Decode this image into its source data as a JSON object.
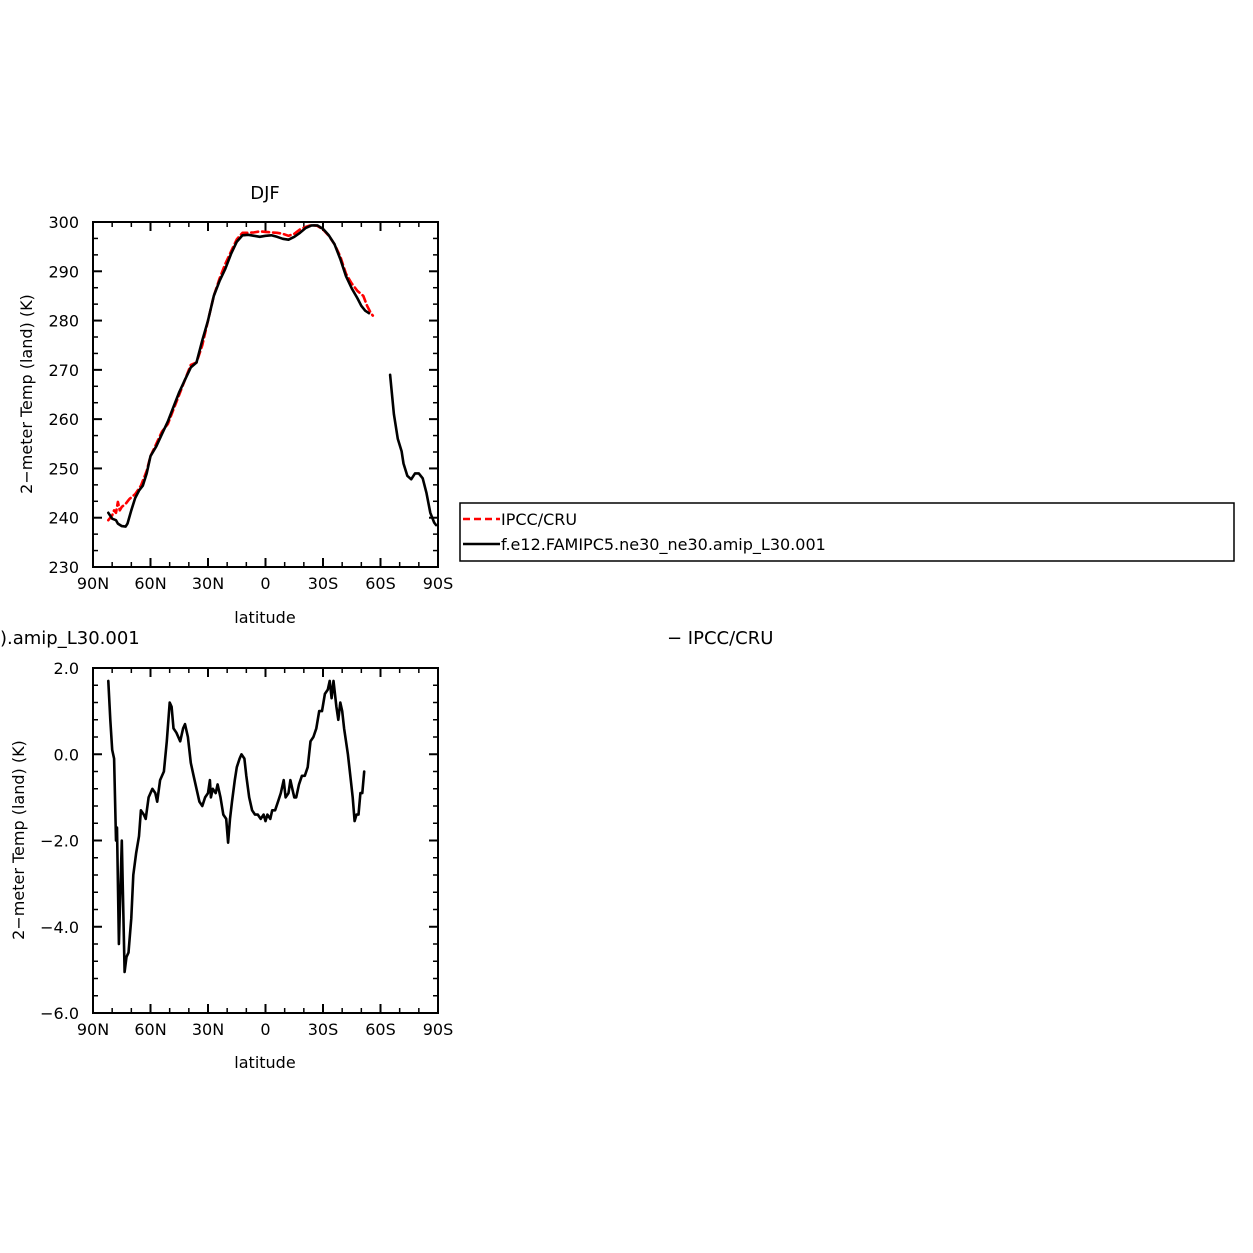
{
  "chart_data": [
    {
      "type": "line",
      "title": "DJF",
      "xlabel": "latitude",
      "ylabel": "2−meter Temp (land) (K)",
      "xlim": [
        90,
        -90
      ],
      "ylim": [
        230,
        300
      ],
      "x_ticks": [
        90,
        60,
        30,
        0,
        -30,
        -60,
        -90
      ],
      "x_tick_labels": [
        "90N",
        "60N",
        "30N",
        "0",
        "30S",
        "60S",
        "90S"
      ],
      "y_ticks": [
        230,
        240,
        250,
        260,
        270,
        280,
        290,
        300
      ],
      "y_tick_labels": [
        "230",
        "240",
        "250",
        "260",
        "270",
        "280",
        "290",
        "300"
      ],
      "legend_position": "right",
      "series": [
        {
          "name": "IPCC/CRU",
          "color": "#ff0000",
          "style": "dashed",
          "segments": [
            [
              [
                82,
                239.5
              ],
              [
                80,
                240.5
              ],
              [
                79,
                241.5
              ],
              [
                78,
                241
              ],
              [
                77,
                243.2
              ],
              [
                76,
                241.5
              ],
              [
                75,
                242.2
              ],
              [
                73,
                242.8
              ],
              [
                71,
                243.8
              ],
              [
                68,
                244.8
              ],
              [
                65,
                246.5
              ],
              [
                62,
                249.5
              ],
              [
                60,
                252.5
              ],
              [
                57,
                255
              ],
              [
                54,
                257.5
              ],
              [
                51,
                259
              ],
              [
                48,
                262
              ],
              [
                45,
                265
              ],
              [
                42,
                268
              ],
              [
                39,
                271
              ],
              [
                36,
                271.5
              ],
              [
                33,
                275
              ],
              [
                30,
                280
              ],
              [
                27,
                285
              ],
              [
                24,
                288.5
              ],
              [
                21,
                291.5
              ],
              [
                18,
                294
              ],
              [
                15,
                296.5
              ],
              [
                12,
                297.8
              ],
              [
                9,
                297.8
              ],
              [
                6,
                297.9
              ],
              [
                3,
                298.1
              ],
              [
                0,
                298
              ],
              [
                -3,
                297.9
              ],
              [
                -6,
                297.8
              ],
              [
                -9,
                297.6
              ],
              [
                -12,
                297.2
              ],
              [
                -15,
                297.6
              ],
              [
                -18,
                298.5
              ],
              [
                -21,
                299
              ],
              [
                -24,
                299.4
              ],
              [
                -27,
                299.2
              ],
              [
                -30,
                298.5
              ],
              [
                -33,
                297.2
              ],
              [
                -36,
                295.5
              ],
              [
                -39,
                293
              ],
              [
                -42,
                289.5
              ],
              [
                -45,
                287.5
              ],
              [
                -48,
                286
              ],
              [
                -51,
                285
              ],
              [
                -53,
                283
              ],
              [
                -55,
                281.5
              ],
              [
                -56,
                281
              ]
            ]
          ]
        },
        {
          "name": "f.e12.FAMIPC5.ne30_ne30.amip_L30.001",
          "color": "#000000",
          "style": "solid",
          "segments": [
            [
              [
                82,
                241
              ],
              [
                80,
                239.8
              ],
              [
                78,
                239.5
              ],
              [
                77,
                238.8
              ],
              [
                75,
                238.3
              ],
              [
                73,
                238.2
              ],
              [
                72,
                238.8
              ],
              [
                70,
                241.5
              ],
              [
                68,
                244
              ],
              [
                66,
                245.5
              ],
              [
                64,
                246.5
              ],
              [
                62,
                249
              ],
              [
                60,
                252.5
              ],
              [
                57,
                254.5
              ],
              [
                54,
                257
              ],
              [
                51,
                259.5
              ],
              [
                48,
                262.5
              ],
              [
                45,
                265.5
              ],
              [
                42,
                268
              ],
              [
                39,
                270.5
              ],
              [
                36,
                271.5
              ],
              [
                33,
                276
              ],
              [
                30,
                280
              ],
              [
                27,
                285
              ],
              [
                24,
                288
              ],
              [
                21,
                290.5
              ],
              [
                18,
                293.5
              ],
              [
                15,
                296
              ],
              [
                12,
                297.3
              ],
              [
                9,
                297.4
              ],
              [
                6,
                297.2
              ],
              [
                3,
                297
              ],
              [
                0,
                297.2
              ],
              [
                -3,
                297.3
              ],
              [
                -6,
                297
              ],
              [
                -9,
                296.6
              ],
              [
                -12,
                296.4
              ],
              [
                -15,
                297
              ],
              [
                -18,
                297.8
              ],
              [
                -21,
                298.8
              ],
              [
                -24,
                299.3
              ],
              [
                -27,
                299.3
              ],
              [
                -30,
                298.6
              ],
              [
                -33,
                297.3
              ],
              [
                -36,
                295.5
              ],
              [
                -39,
                292.5
              ],
              [
                -42,
                289
              ],
              [
                -45,
                286.5
              ],
              [
                -48,
                284.5
              ],
              [
                -50,
                283
              ],
              [
                -52,
                282
              ],
              [
                -54,
                281.5
              ]
            ],
            [
              [
                -65,
                269
              ],
              [
                -66,
                265
              ],
              [
                -67,
                261
              ],
              [
                -69,
                256
              ],
              [
                -71,
                253.5
              ],
              [
                -72,
                251
              ],
              [
                -74,
                248.5
              ],
              [
                -76,
                247.8
              ],
              [
                -78,
                249
              ],
              [
                -80,
                249
              ],
              [
                -82,
                248
              ],
              [
                -84,
                245
              ],
              [
                -86,
                241
              ],
              [
                -88,
                239
              ],
              [
                -89,
                238.5
              ]
            ]
          ]
        }
      ]
    },
    {
      "type": "line",
      "title": ").amip_L30.001",
      "title_right": "− IPCC/CRU",
      "xlabel": "latitude",
      "ylabel": "2−meter Temp (land) (K)",
      "xlim": [
        90,
        -90
      ],
      "ylim": [
        -6,
        2
      ],
      "x_ticks": [
        90,
        60,
        30,
        0,
        -30,
        -60,
        -90
      ],
      "x_tick_labels": [
        "90N",
        "60N",
        "30N",
        "0",
        "30S",
        "60S",
        "90S"
      ],
      "y_ticks": [
        -6,
        -4,
        -2,
        0,
        2
      ],
      "y_tick_labels": [
        "−6.0",
        "−4.0",
        "−2.0",
        "0.0",
        "2.0"
      ],
      "series": [
        {
          "color": "#000000",
          "style": "solid",
          "segments": [
            [
              [
                82,
                1.7
              ],
              [
                81,
                0.8
              ],
              [
                80,
                0.1
              ],
              [
                79,
                -0.1
              ],
              [
                78,
                -2
              ],
              [
                77.5,
                -1.7
              ],
              [
                76.5,
                -4.4
              ],
              [
                75,
                -2
              ],
              [
                73.5,
                -5.05
              ],
              [
                72.5,
                -4.7
              ],
              [
                71.5,
                -4.6
              ],
              [
                70,
                -3.8
              ],
              [
                69,
                -2.8
              ],
              [
                67.5,
                -2.3
              ],
              [
                66,
                -1.9
              ],
              [
                65,
                -1.3
              ],
              [
                63.5,
                -1.4
              ],
              [
                62.5,
                -1.5
              ],
              [
                61,
                -1.0
              ],
              [
                59,
                -0.8
              ],
              [
                57.5,
                -0.9
              ],
              [
                56.5,
                -1.1
              ],
              [
                55,
                -0.6
              ],
              [
                53,
                -0.4
              ],
              [
                51.5,
                0.3
              ],
              [
                50,
                1.2
              ],
              [
                49,
                1.1
              ],
              [
                48,
                0.6
              ],
              [
                46.5,
                0.5
              ],
              [
                45.5,
                0.4
              ],
              [
                44.5,
                0.3
              ],
              [
                43,
                0.6
              ],
              [
                42,
                0.7
              ],
              [
                40.5,
                0.4
              ],
              [
                39,
                -0.2
              ],
              [
                37.5,
                -0.5
              ],
              [
                36,
                -0.8
              ],
              [
                34.5,
                -1.1
              ],
              [
                33,
                -1.2
              ],
              [
                31.5,
                -1.0
              ],
              [
                30,
                -0.9
              ],
              [
                29,
                -0.6
              ],
              [
                28.5,
                -1.0
              ],
              [
                27.5,
                -0.8
              ],
              [
                26,
                -0.9
              ],
              [
                25,
                -0.7
              ],
              [
                23.5,
                -1.0
              ],
              [
                22,
                -1.4
              ],
              [
                20.5,
                -1.5
              ],
              [
                19.5,
                -2.05
              ],
              [
                18.5,
                -1.5
              ],
              [
                17.5,
                -1.1
              ],
              [
                16,
                -0.6
              ],
              [
                15,
                -0.3
              ],
              [
                13.5,
                -0.1
              ],
              [
                12.5,
                0.0
              ],
              [
                11,
                -0.1
              ],
              [
                10,
                -0.5
              ],
              [
                8.5,
                -1.0
              ],
              [
                7,
                -1.3
              ],
              [
                5.5,
                -1.4
              ],
              [
                4,
                -1.4
              ],
              [
                2.5,
                -1.5
              ],
              [
                1,
                -1.4
              ],
              [
                0,
                -1.55
              ],
              [
                -1,
                -1.4
              ],
              [
                -2.5,
                -1.5
              ],
              [
                -3.5,
                -1.3
              ],
              [
                -5,
                -1.3
              ],
              [
                -6.5,
                -1.1
              ],
              [
                -8,
                -0.9
              ],
              [
                -9.5,
                -0.6
              ],
              [
                -10.5,
                -1.0
              ],
              [
                -12,
                -0.9
              ],
              [
                -13,
                -0.6
              ],
              [
                -14,
                -0.8
              ],
              [
                -15,
                -1.0
              ],
              [
                -16,
                -1.0
              ],
              [
                -17.5,
                -0.7
              ],
              [
                -19,
                -0.5
              ],
              [
                -20.5,
                -0.5
              ],
              [
                -22,
                -0.3
              ],
              [
                -23.5,
                0.3
              ],
              [
                -25,
                0.4
              ],
              [
                -26.5,
                0.6
              ],
              [
                -28,
                1.0
              ],
              [
                -29.5,
                1.0
              ],
              [
                -31,
                1.4
              ],
              [
                -32.5,
                1.5
              ],
              [
                -33.5,
                1.7
              ],
              [
                -34.5,
                1.3
              ],
              [
                -35.5,
                1.7
              ],
              [
                -37,
                1.1
              ],
              [
                -38,
                0.8
              ],
              [
                -39,
                1.2
              ],
              [
                -40,
                1.0
              ],
              [
                -41,
                0.6
              ],
              [
                -42,
                0.3
              ],
              [
                -43,
                0.0
              ],
              [
                -44.5,
                -0.6
              ],
              [
                -45.5,
                -1.0
              ],
              [
                -46.5,
                -1.55
              ],
              [
                -47.5,
                -1.4
              ],
              [
                -48.5,
                -1.4
              ],
              [
                -49.5,
                -0.9
              ],
              [
                -50.5,
                -0.9
              ],
              [
                -51.5,
                -0.4
              ]
            ]
          ]
        }
      ]
    }
  ],
  "legend": {
    "entries": [
      "IPCC/CRU",
      "f.e12.FAMIPC5.ne30_ne30.amip_L30.001"
    ]
  }
}
